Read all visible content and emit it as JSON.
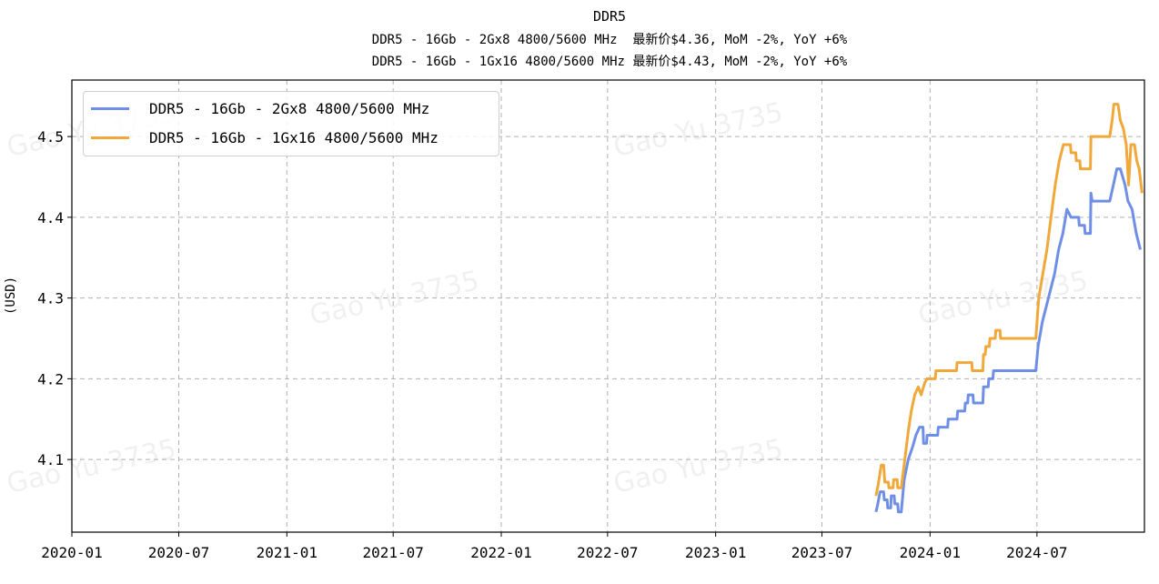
{
  "chart_data": {
    "type": "line",
    "title": "DDR5",
    "subtitles": [
      "DDR5 - 16Gb - 2Gx8 4800/5600 MHz  最新价$4.36, MoM -2%, YoY +6%",
      "DDR5 - 16Gb - 1Gx16 4800/5600 MHz 最新价$4.43, MoM -2%, YoY +6%"
    ],
    "xlabel": "",
    "ylabel": "(USD)",
    "xlim": [
      "2020-01-01",
      "2024-12-31"
    ],
    "ylim": [
      4.01,
      4.57
    ],
    "x_ticks": [
      "2020-01",
      "2020-07",
      "2021-01",
      "2021-07",
      "2022-01",
      "2022-07",
      "2023-01",
      "2023-07",
      "2024-01",
      "2024-07"
    ],
    "y_ticks": [
      4.1,
      4.2,
      4.3,
      4.4,
      4.5
    ],
    "grid": true,
    "legend_position": "upper-left",
    "watermark": "Gao Yu 3735",
    "series": [
      {
        "name": "DDR5 - 16Gb - 2Gx8 4800/5600 MHz",
        "color": "#6f8fe6",
        "points": [
          [
            "2023-10-01",
            4.035
          ],
          [
            "2023-10-04",
            4.045
          ],
          [
            "2023-10-08",
            4.06
          ],
          [
            "2023-10-14",
            4.06
          ],
          [
            "2023-10-15",
            4.05
          ],
          [
            "2023-10-20",
            4.05
          ],
          [
            "2023-10-21",
            4.04
          ],
          [
            "2023-10-26",
            4.04
          ],
          [
            "2023-10-27",
            4.055
          ],
          [
            "2023-11-01",
            4.055
          ],
          [
            "2023-11-02",
            4.045
          ],
          [
            "2023-11-07",
            4.045
          ],
          [
            "2023-11-08",
            4.035
          ],
          [
            "2023-11-13",
            4.035
          ],
          [
            "2023-11-18",
            4.075
          ],
          [
            "2023-11-25",
            4.1
          ],
          [
            "2023-12-02",
            4.115
          ],
          [
            "2023-12-08",
            4.13
          ],
          [
            "2023-12-14",
            4.14
          ],
          [
            "2023-12-20",
            4.14
          ],
          [
            "2023-12-21",
            4.12
          ],
          [
            "2023-12-26",
            4.12
          ],
          [
            "2023-12-27",
            4.13
          ],
          [
            "2024-01-14",
            4.13
          ],
          [
            "2024-01-15",
            4.14
          ],
          [
            "2024-01-31",
            4.14
          ],
          [
            "2024-02-01",
            4.15
          ],
          [
            "2024-02-16",
            4.15
          ],
          [
            "2024-02-17",
            4.16
          ],
          [
            "2024-02-29",
            4.16
          ],
          [
            "2024-03-01",
            4.17
          ],
          [
            "2024-03-05",
            4.17
          ],
          [
            "2024-03-06",
            4.18
          ],
          [
            "2024-03-14",
            4.18
          ],
          [
            "2024-03-15",
            4.17
          ],
          [
            "2024-03-31",
            4.17
          ],
          [
            "2024-04-01",
            4.19
          ],
          [
            "2024-04-09",
            4.19
          ],
          [
            "2024-04-10",
            4.2
          ],
          [
            "2024-04-17",
            4.2
          ],
          [
            "2024-04-18",
            4.21
          ],
          [
            "2024-06-29",
            4.21
          ],
          [
            "2024-07-03",
            4.24
          ],
          [
            "2024-07-10",
            4.27
          ],
          [
            "2024-07-17",
            4.29
          ],
          [
            "2024-07-24",
            4.31
          ],
          [
            "2024-07-31",
            4.33
          ],
          [
            "2024-08-07",
            4.36
          ],
          [
            "2024-08-14",
            4.38
          ],
          [
            "2024-08-21",
            4.41
          ],
          [
            "2024-08-28",
            4.4
          ],
          [
            "2024-09-10",
            4.4
          ],
          [
            "2024-09-11",
            4.39
          ],
          [
            "2024-09-20",
            4.39
          ],
          [
            "2024-09-21",
            4.38
          ],
          [
            "2024-09-30",
            4.38
          ],
          [
            "2024-10-01",
            4.43
          ],
          [
            "2024-10-03",
            4.42
          ],
          [
            "2024-11-02",
            4.42
          ],
          [
            "2024-11-08",
            4.44
          ],
          [
            "2024-11-14",
            4.46
          ],
          [
            "2024-11-20",
            4.46
          ],
          [
            "2024-11-24",
            4.45
          ],
          [
            "2024-11-28",
            4.44
          ],
          [
            "2024-12-03",
            4.42
          ],
          [
            "2024-12-10",
            4.41
          ],
          [
            "2024-12-17",
            4.38
          ],
          [
            "2024-12-24",
            4.36
          ]
        ]
      },
      {
        "name": "DDR5 - 16Gb - 1Gx16 4800/5600 MHz",
        "color": "#f0a83a",
        "points": [
          [
            "2023-10-01",
            4.055
          ],
          [
            "2023-10-05",
            4.07
          ],
          [
            "2023-10-10",
            4.093
          ],
          [
            "2023-10-14",
            4.093
          ],
          [
            "2023-10-16",
            4.072
          ],
          [
            "2023-10-22",
            4.072
          ],
          [
            "2023-10-23",
            4.065
          ],
          [
            "2023-10-30",
            4.065
          ],
          [
            "2023-10-31",
            4.075
          ],
          [
            "2023-11-06",
            4.075
          ],
          [
            "2023-11-07",
            4.065
          ],
          [
            "2023-11-13",
            4.065
          ],
          [
            "2023-11-19",
            4.1
          ],
          [
            "2023-11-25",
            4.135
          ],
          [
            "2023-11-30",
            4.16
          ],
          [
            "2023-12-06",
            4.18
          ],
          [
            "2023-12-12",
            4.19
          ],
          [
            "2023-12-17",
            4.18
          ],
          [
            "2023-12-23",
            4.195
          ],
          [
            "2023-12-27",
            4.2
          ],
          [
            "2024-01-10",
            4.2
          ],
          [
            "2024-01-11",
            4.21
          ],
          [
            "2024-02-15",
            4.21
          ],
          [
            "2024-02-16",
            4.22
          ],
          [
            "2024-03-12",
            4.22
          ],
          [
            "2024-03-13",
            4.21
          ],
          [
            "2024-03-31",
            4.21
          ],
          [
            "2024-04-01",
            4.23
          ],
          [
            "2024-04-04",
            4.23
          ],
          [
            "2024-04-05",
            4.24
          ],
          [
            "2024-04-11",
            4.24
          ],
          [
            "2024-04-12",
            4.25
          ],
          [
            "2024-04-21",
            4.25
          ],
          [
            "2024-04-22",
            4.26
          ],
          [
            "2024-04-29",
            4.26
          ],
          [
            "2024-04-30",
            4.25
          ],
          [
            "2024-06-29",
            4.25
          ],
          [
            "2024-07-04",
            4.3
          ],
          [
            "2024-07-11",
            4.33
          ],
          [
            "2024-07-18",
            4.36
          ],
          [
            "2024-07-25",
            4.4
          ],
          [
            "2024-08-01",
            4.44
          ],
          [
            "2024-08-08",
            4.47
          ],
          [
            "2024-08-15",
            4.49
          ],
          [
            "2024-08-27",
            4.49
          ],
          [
            "2024-08-28",
            4.48
          ],
          [
            "2024-09-05",
            4.48
          ],
          [
            "2024-09-06",
            4.47
          ],
          [
            "2024-09-12",
            4.47
          ],
          [
            "2024-09-13",
            4.46
          ],
          [
            "2024-09-30",
            4.46
          ],
          [
            "2024-10-01",
            4.5
          ],
          [
            "2024-11-02",
            4.5
          ],
          [
            "2024-11-06",
            4.52
          ],
          [
            "2024-11-09",
            4.54
          ],
          [
            "2024-11-16",
            4.54
          ],
          [
            "2024-11-20",
            4.52
          ],
          [
            "2024-11-25",
            4.51
          ],
          [
            "2024-11-30",
            4.49
          ],
          [
            "2024-12-04",
            4.44
          ],
          [
            "2024-12-08",
            4.49
          ],
          [
            "2024-12-14",
            4.49
          ],
          [
            "2024-12-18",
            4.47
          ],
          [
            "2024-12-22",
            4.46
          ],
          [
            "2024-12-27",
            4.43
          ]
        ]
      }
    ]
  }
}
